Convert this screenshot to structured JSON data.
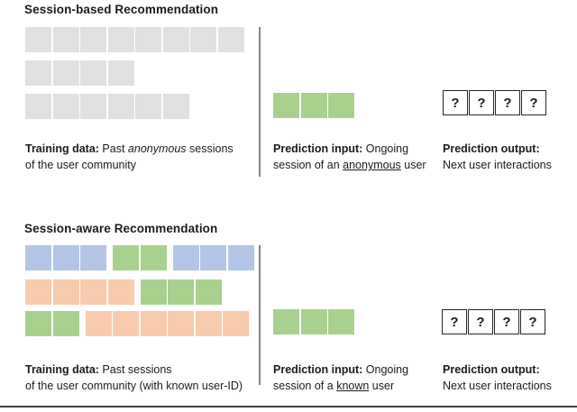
{
  "colors": {
    "gray": "#e1e1e1",
    "green": "#a9d18e",
    "blue": "#b3c6e7",
    "orange": "#f8cbad",
    "divider": "#868686",
    "question_box_border": "#262626",
    "bottom_rule": "#404040"
  },
  "sections": {
    "session_based": {
      "title": "Session-based Recommendation",
      "training_rows": [
        {
          "groups": [
            {
              "color": "gray",
              "count": 8
            }
          ]
        },
        {
          "groups": [
            {
              "color": "gray",
              "count": 4
            }
          ]
        },
        {
          "groups": [
            {
              "color": "gray",
              "count": 6
            }
          ]
        }
      ],
      "input_row": {
        "groups": [
          {
            "color": "green",
            "count": 3
          }
        ]
      },
      "output_row": {
        "groups": [
          {
            "boxed": true,
            "count": 4,
            "symbol": "?"
          }
        ]
      },
      "training_caption": [
        {
          "t": "Training data:",
          "s": "bold"
        },
        {
          "t": " Past ",
          "s": "normal"
        },
        {
          "t": "anonymous",
          "s": "italic"
        },
        {
          "t": " sessions",
          "s": "normal"
        },
        {
          "br": true
        },
        {
          "t": "of the user community",
          "s": "normal"
        }
      ],
      "input_caption": [
        {
          "t": "Prediction input:",
          "s": "bold"
        },
        {
          "t": " Ongoing",
          "s": "normal"
        },
        {
          "br": true
        },
        {
          "t": "session of an ",
          "s": "normal"
        },
        {
          "t": "anonymous",
          "s": "underline"
        },
        {
          "t": " user",
          "s": "normal"
        }
      ],
      "output_caption": [
        {
          "t": "Prediction output:",
          "s": "bold"
        },
        {
          "br": true
        },
        {
          "t": "Next user interactions",
          "s": "normal"
        }
      ]
    },
    "session_aware": {
      "title": "Session-aware Recommendation",
      "training_rows": [
        {
          "groups": [
            {
              "color": "blue",
              "count": 3
            },
            {
              "color": "green",
              "count": 2
            },
            {
              "color": "blue",
              "count": 3
            }
          ]
        },
        {
          "groups": [
            {
              "color": "orange",
              "count": 4
            },
            {
              "color": "green",
              "count": 3
            }
          ]
        },
        {
          "groups": [
            {
              "color": "green",
              "count": 2
            },
            {
              "color": "orange",
              "count": 6
            }
          ]
        }
      ],
      "input_row": {
        "groups": [
          {
            "color": "green",
            "count": 3
          }
        ]
      },
      "output_row": {
        "groups": [
          {
            "boxed": true,
            "count": 4,
            "symbol": "?"
          }
        ]
      },
      "training_caption": [
        {
          "t": "Training data:",
          "s": "bold"
        },
        {
          "t": " Past sessions",
          "s": "normal"
        },
        {
          "br": true
        },
        {
          "t": "of the user community (with known user-ID)",
          "s": "normal"
        }
      ],
      "input_caption": [
        {
          "t": "Prediction input:",
          "s": "bold"
        },
        {
          "t": " Ongoing",
          "s": "normal"
        },
        {
          "br": true
        },
        {
          "t": "session of a ",
          "s": "normal"
        },
        {
          "t": "known",
          "s": "underline"
        },
        {
          "t": " user",
          "s": "normal"
        }
      ],
      "output_caption": [
        {
          "t": "Prediction output:",
          "s": "bold"
        },
        {
          "br": true
        },
        {
          "t": "Next user interactions",
          "s": "normal"
        }
      ]
    }
  }
}
